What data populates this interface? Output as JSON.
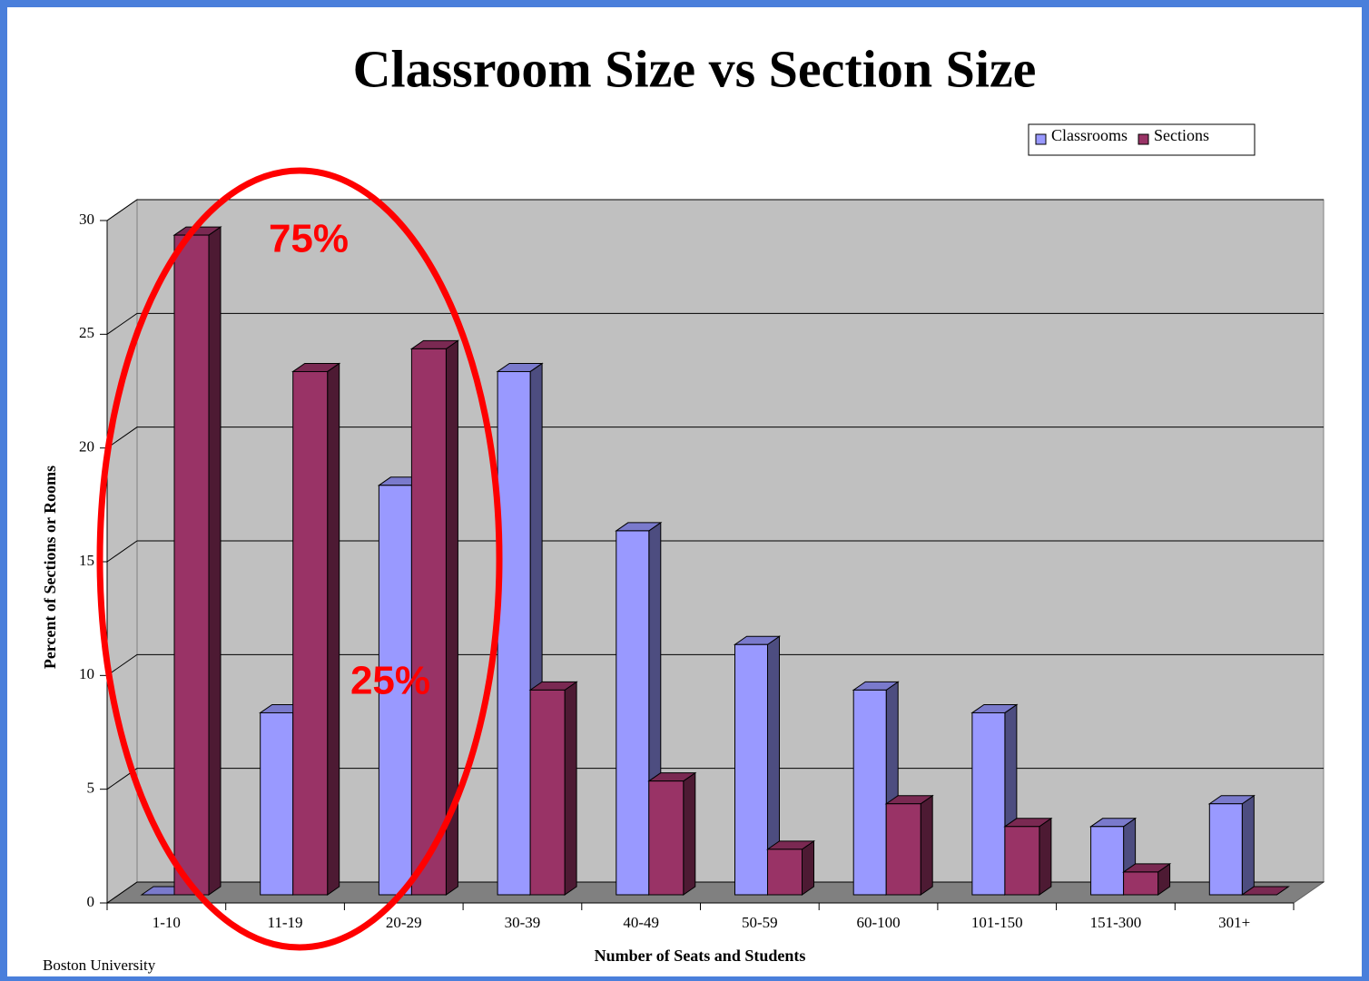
{
  "chart_data": {
    "type": "bar3d",
    "title": "Classroom Size vs Section Size",
    "x_label": "Number of Seats and Students",
    "y_label": "Percent of Sections or Rooms",
    "categories": [
      "1-10",
      "11-19",
      "20-29",
      "30-39",
      "40-49",
      "50-59",
      "60-100",
      "101-150",
      "151-300",
      "301+"
    ],
    "series": [
      {
        "name": "Classrooms",
        "color": "#9999ff",
        "values": [
          0,
          8,
          18,
          23,
          16,
          11,
          9,
          8,
          3,
          4
        ]
      },
      {
        "name": "Sections",
        "color": "#993366",
        "values": [
          29,
          23,
          24,
          9,
          5,
          2,
          4,
          3,
          1,
          0
        ]
      }
    ],
    "ylim": [
      0,
      30
    ],
    "yticks": [
      0,
      5,
      10,
      15,
      20,
      25,
      30
    ],
    "grid": true,
    "legend": "top-right",
    "annotations": [
      "75%",
      "25%"
    ],
    "footer": "Boston University"
  }
}
